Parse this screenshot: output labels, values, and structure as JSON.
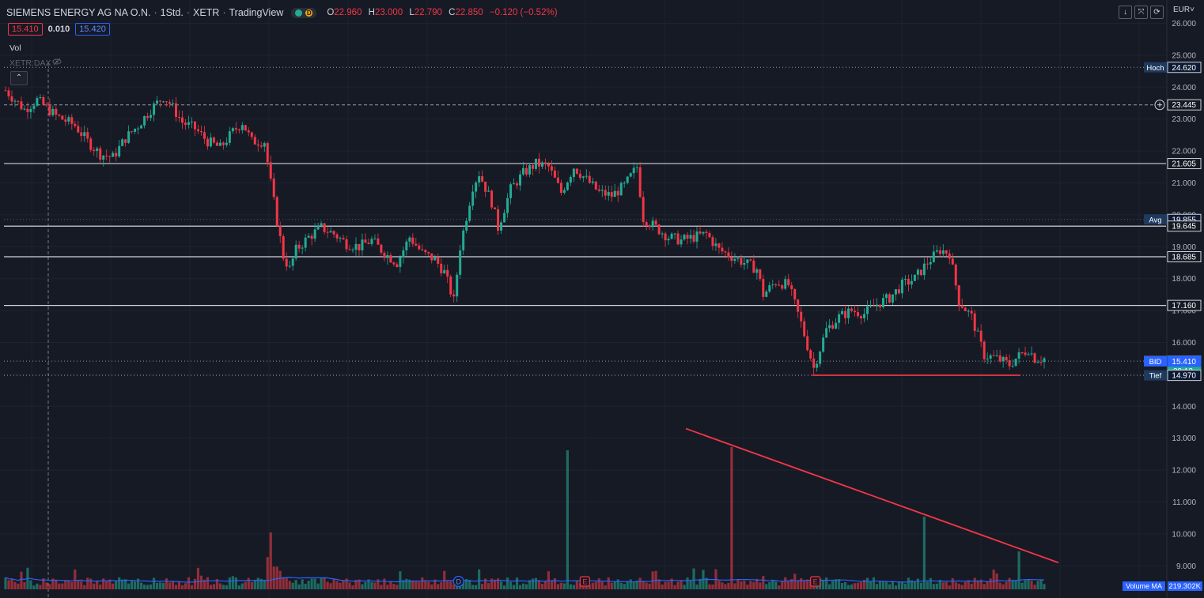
{
  "header": {
    "symbol": "SIEMENS ENERGY AG NA O.N.",
    "interval": "1Std.",
    "exchange": "XETR",
    "source": "TradingView",
    "status_badge": "D",
    "open_label": "O",
    "open": "22.960",
    "high_label": "H",
    "high": "23.000",
    "low_label": "L",
    "low": "22.790",
    "close_label": "C",
    "close": "22.850",
    "change": "−0.120 (−0.52%)"
  },
  "quote": {
    "bid": "15.410",
    "spread": "0.010",
    "ask": "15.420"
  },
  "indicators": {
    "vol": "Vol",
    "compare": "XETR:DAX",
    "volume_ma_label": "Volume MA",
    "volume_ma_value": "219.302K"
  },
  "toolbar": {
    "currency": "EUR˅"
  },
  "colors": {
    "background": "#161a25",
    "grid": "#1f2330",
    "up": "#22ab94",
    "down": "#f23645",
    "trend": "#f23645",
    "level": "#d1d4dc",
    "volume_ma": "#2962ff"
  },
  "chart_data": {
    "type": "candlestick",
    "title": "SIEMENS ENERGY AG NA O.N.",
    "xlabel": "",
    "ylabel": "",
    "ylim": [
      8.5,
      26.5
    ],
    "grid": true,
    "y_ticks": [
      "26.000",
      "25.000",
      "24.000",
      "23.000",
      "22.000",
      "21.000",
      "20.000",
      "19.000",
      "18.000",
      "17.000",
      "16.000",
      "15.000",
      "14.000",
      "13.000",
      "12.000",
      "11.000",
      "10.000",
      "9.000"
    ],
    "price_path": [
      [
        0,
        23.9
      ],
      [
        6,
        23.3
      ],
      [
        10,
        23.6
      ],
      [
        16,
        23.1
      ],
      [
        22,
        22.8
      ],
      [
        26,
        22.3
      ],
      [
        30,
        21.9
      ],
      [
        34,
        21.8
      ],
      [
        38,
        22.4
      ],
      [
        42,
        22.8
      ],
      [
        46,
        23.3
      ],
      [
        50,
        23.7
      ],
      [
        52,
        23.5
      ],
      [
        56,
        22.9
      ],
      [
        60,
        22.7
      ],
      [
        64,
        22.3
      ],
      [
        68,
        22.1
      ],
      [
        72,
        22.6
      ],
      [
        75,
        22.9
      ],
      [
        78,
        22.3
      ],
      [
        82,
        22.3
      ],
      [
        84,
        21.0
      ],
      [
        86,
        19.8
      ],
      [
        88,
        18.7
      ],
      [
        90,
        18.3
      ],
      [
        92,
        18.9
      ],
      [
        96,
        19.3
      ],
      [
        100,
        19.6
      ],
      [
        104,
        19.4
      ],
      [
        108,
        19.1
      ],
      [
        112,
        19.0
      ],
      [
        116,
        19.2
      ],
      [
        120,
        18.8
      ],
      [
        124,
        18.5
      ],
      [
        128,
        19.3
      ],
      [
        132,
        18.8
      ],
      [
        136,
        18.6
      ],
      [
        139,
        18.2
      ],
      [
        142,
        17.3
      ],
      [
        144,
        19.0
      ],
      [
        148,
        20.9
      ],
      [
        150,
        21.3
      ],
      [
        154,
        20.4
      ],
      [
        156,
        19.6
      ],
      [
        160,
        20.8
      ],
      [
        164,
        21.3
      ],
      [
        168,
        21.6
      ],
      [
        172,
        21.5
      ],
      [
        176,
        20.7
      ],
      [
        180,
        21.5
      ],
      [
        184,
        21.1
      ],
      [
        188,
        20.7
      ],
      [
        192,
        20.6
      ],
      [
        196,
        20.9
      ],
      [
        200,
        21.5
      ],
      [
        202,
        19.9
      ],
      [
        206,
        19.6
      ],
      [
        210,
        19.3
      ],
      [
        214,
        19.2
      ],
      [
        218,
        19.3
      ],
      [
        222,
        19.4
      ],
      [
        226,
        18.9
      ],
      [
        230,
        18.7
      ],
      [
        234,
        18.5
      ],
      [
        238,
        18.3
      ],
      [
        240,
        17.5
      ],
      [
        244,
        17.9
      ],
      [
        248,
        17.8
      ],
      [
        252,
        16.6
      ],
      [
        256,
        15.2
      ],
      [
        260,
        16.4
      ],
      [
        264,
        16.8
      ],
      [
        268,
        17.0
      ],
      [
        272,
        16.9
      ],
      [
        276,
        17.2
      ],
      [
        280,
        17.4
      ],
      [
        284,
        17.8
      ],
      [
        288,
        18.0
      ],
      [
        292,
        18.5
      ],
      [
        296,
        18.9
      ],
      [
        299,
        18.8
      ],
      [
        302,
        17.3
      ],
      [
        306,
        16.8
      ],
      [
        308,
        16.2
      ],
      [
        310,
        15.6
      ],
      [
        314,
        15.5
      ],
      [
        318,
        15.3
      ],
      [
        320,
        15.5
      ],
      [
        324,
        15.8
      ],
      [
        326,
        15.5
      ]
    ],
    "horizontal_levels": [
      21.605,
      19.645,
      18.685,
      17.16
    ],
    "price_labels": [
      {
        "label": "",
        "value": "26.000"
      },
      {
        "label": "Hoch",
        "value": "24.620"
      },
      {
        "label": "",
        "value": "23.445"
      },
      {
        "label": "",
        "value": "21.605"
      },
      {
        "label": "Avg",
        "value": "19.855"
      },
      {
        "label": "",
        "value": "19.645"
      },
      {
        "label": "",
        "value": "18.685"
      },
      {
        "label": "",
        "value": "17.160"
      },
      {
        "label": "ASK",
        "value": "15.420"
      },
      {
        "label": "ENR",
        "value": "15.415",
        "countdown": "29:13"
      },
      {
        "label": "BID",
        "value": "15.410"
      },
      {
        "label": "Tief",
        "value": "14.970"
      }
    ],
    "support_line": {
      "from": [
        256,
        14.97
      ],
      "to": [
        322,
        14.97
      ]
    },
    "trend_line": {
      "from": [
        216,
        13.3
      ],
      "to": [
        334,
        9.1
      ]
    },
    "event_markers": [
      {
        "label": "D",
        "at": 144
      },
      {
        "label": "E",
        "at": 184
      },
      {
        "label": "E",
        "at": 257
      }
    ],
    "volume_spikes": [
      {
        "at": 84,
        "value": 18
      },
      {
        "at": 178,
        "value": 44
      },
      {
        "at": 230,
        "value": 45
      },
      {
        "at": 291,
        "value": 23
      },
      {
        "at": 321,
        "value": 12
      }
    ]
  }
}
